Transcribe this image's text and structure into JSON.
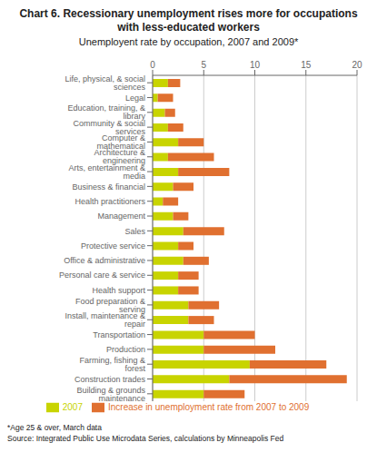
{
  "chart_data": {
    "type": "bar",
    "orientation": "horizontal",
    "stacked": true,
    "grid": true,
    "legend": "bottom",
    "title": "Chart 6. Recessionary unemployment rises more for occupations with less-educated workers",
    "subtitle": "Unemployent rate by occupation, 2007 and 2009*",
    "annotations": [
      "*Age 25 & over, March data",
      "Source: Integrated Public Use Microdata Series, calculations by Minneapolis Fed"
    ],
    "categories": [
      "Life, physical, & social sciences",
      "Legal",
      "Education, training, & library",
      "Community & social services",
      "Computer & mathematical",
      "Architecture & engineering",
      "Arts, entertainment & media",
      "Business & financial",
      "Health practitioners",
      "Management",
      "Sales",
      "Protective service",
      "Office & administrative",
      "Personal care & service",
      "Health support",
      "Food preparation & serving",
      "Install, maintenance & repair",
      "Transportation",
      "Production",
      "Farming, fishing & forest",
      "Construction trades",
      "Building & grounds maintenance"
    ],
    "series": [
      {
        "name": "2007",
        "color": "#c8d400",
        "values": [
          1.5,
          0.5,
          1.2,
          1.5,
          2.5,
          1.5,
          2.5,
          2.0,
          1.0,
          2.0,
          3.0,
          2.5,
          3.0,
          2.5,
          2.5,
          3.5,
          3.5,
          5.0,
          5.0,
          9.5,
          7.5,
          5.0
        ]
      },
      {
        "name": "Increase in unemployment rate from 2007 to 2009",
        "color": "#e07030",
        "values": [
          1.2,
          1.5,
          1.0,
          1.5,
          2.5,
          4.5,
          5.0,
          2.0,
          1.5,
          1.5,
          4.0,
          1.5,
          2.5,
          2.0,
          2.0,
          3.0,
          2.5,
          5.0,
          7.0,
          7.5,
          11.5,
          4.0
        ]
      }
    ],
    "xlim": [
      0,
      20
    ],
    "xticks": [
      0,
      5,
      10,
      15,
      20
    ]
  }
}
